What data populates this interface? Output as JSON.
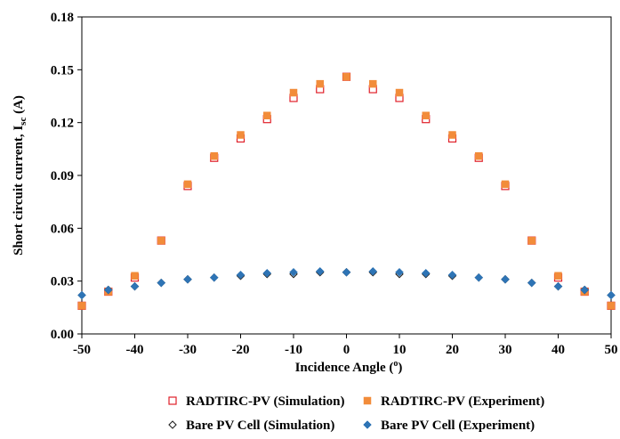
{
  "chart_data": {
    "type": "scatter",
    "xlabel": "Incidence Angle (",
    "xlabel_sup": "o",
    "xlabel_end": ")",
    "ylabel": "Short circuit current, I",
    "ylabel_sub": "sc",
    "ylabel_end": " (A)",
    "xlim": [
      -50,
      50
    ],
    "ylim": [
      0,
      0.18
    ],
    "x_ticks": [
      -50,
      -40,
      -30,
      -20,
      -10,
      0,
      10,
      20,
      30,
      40,
      50
    ],
    "x_tick_labels": [
      "-50",
      "-40",
      "-30",
      "-20",
      "-10",
      "0",
      "10",
      "20",
      "30",
      "40",
      "50"
    ],
    "y_ticks": [
      0,
      0.03,
      0.06,
      0.09,
      0.12,
      0.15,
      0.18
    ],
    "y_tick_labels": [
      "0.00",
      "0.03",
      "0.06",
      "0.09",
      "0.12",
      "0.15",
      "0.18"
    ],
    "grid": false,
    "legend_position": "bottom",
    "x": [
      -50,
      -45,
      -40,
      -35,
      -30,
      -25,
      -20,
      -15,
      -10,
      -5,
      0,
      5,
      10,
      15,
      20,
      25,
      30,
      35,
      40,
      45,
      50
    ],
    "series": [
      {
        "name": "RADTIRC-PV (Simulation)",
        "marker": "open-square",
        "color": "#e0202a",
        "values": [
          0.016,
          0.024,
          0.032,
          0.053,
          0.084,
          0.1,
          0.111,
          0.122,
          0.134,
          0.139,
          0.146,
          0.139,
          0.134,
          0.122,
          0.111,
          0.1,
          0.084,
          0.053,
          0.032,
          0.024,
          0.016
        ]
      },
      {
        "name": "RADTIRC-PV (Experiment)",
        "marker": "filled-square",
        "color": "#f28c3a",
        "values": [
          0.016,
          0.024,
          0.033,
          0.053,
          0.085,
          0.101,
          0.113,
          0.124,
          0.137,
          0.142,
          0.146,
          0.142,
          0.137,
          0.124,
          0.113,
          0.101,
          0.085,
          0.053,
          0.033,
          0.024,
          0.016
        ]
      },
      {
        "name": "Bare PV Cell (Simulation)",
        "marker": "open-diamond",
        "color": "#222222",
        "values": [
          0.022,
          0.025,
          0.027,
          0.029,
          0.031,
          0.032,
          0.033,
          0.034,
          0.034,
          0.035,
          0.035,
          0.035,
          0.034,
          0.034,
          0.033,
          0.032,
          0.031,
          0.029,
          0.027,
          0.025,
          0.022
        ]
      },
      {
        "name": "Bare PV Cell (Experiment)",
        "marker": "filled-diamond",
        "color": "#2e74b5",
        "values": [
          0.022,
          0.025,
          0.027,
          0.029,
          0.031,
          0.032,
          0.0335,
          0.0345,
          0.035,
          0.0355,
          0.035,
          0.0355,
          0.035,
          0.0345,
          0.0335,
          0.032,
          0.031,
          0.029,
          0.027,
          0.025,
          0.022
        ]
      }
    ]
  }
}
